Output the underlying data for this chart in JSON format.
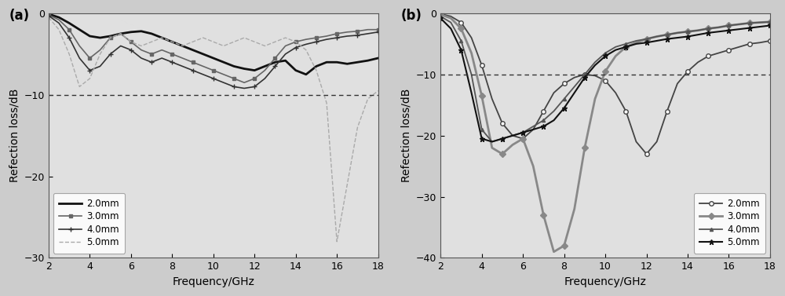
{
  "background_color": "#cccccc",
  "panel_background": "#e0e0e0",
  "title_a": "(a)",
  "title_b": "(b)",
  "xlabel": "Frequency/GHz",
  "ylabel": "Refection loss/dB",
  "xlim": [
    2,
    18
  ],
  "ylim_a": [
    -30,
    0
  ],
  "ylim_b": [
    -40,
    0
  ],
  "xticks": [
    2,
    4,
    6,
    8,
    10,
    12,
    14,
    16,
    18
  ],
  "yticks_a": [
    0,
    -10,
    -20,
    -30
  ],
  "yticks_b": [
    0,
    -10,
    -20,
    -30,
    -40
  ],
  "dashed_line_y": -10,
  "panel_a": {
    "2.0mm": {
      "color": "#111111",
      "linestyle": "-",
      "linewidth": 2.0,
      "marker": "None",
      "freq": [
        2,
        2.5,
        3,
        3.5,
        4,
        4.5,
        5,
        5.5,
        6,
        6.5,
        7,
        7.5,
        8,
        8.5,
        9,
        9.5,
        10,
        10.5,
        11,
        11.5,
        12,
        12.5,
        13,
        13.5,
        14,
        14.5,
        15,
        15.5,
        16,
        16.5,
        17,
        17.5,
        18
      ],
      "vals": [
        -0.1,
        -0.5,
        -1.2,
        -2.0,
        -2.8,
        -3.0,
        -2.8,
        -2.5,
        -2.3,
        -2.2,
        -2.5,
        -3.0,
        -3.5,
        -4.0,
        -4.5,
        -5.0,
        -5.5,
        -6.0,
        -6.5,
        -6.8,
        -7.0,
        -6.5,
        -6.0,
        -5.8,
        -7.0,
        -7.5,
        -6.5,
        -6.0,
        -6.0,
        -6.2,
        -6.0,
        -5.8,
        -5.5
      ]
    },
    "3.0mm": {
      "color": "#666666",
      "linestyle": "-",
      "linewidth": 1.2,
      "marker": "s",
      "markersize": 3,
      "markerfacecolor": "#666666",
      "freq": [
        2,
        2.5,
        3,
        3.5,
        4,
        4.5,
        5,
        5.5,
        6,
        6.5,
        7,
        7.5,
        8,
        8.5,
        9,
        9.5,
        10,
        10.5,
        11,
        11.5,
        12,
        12.5,
        13,
        13.5,
        14,
        14.5,
        15,
        15.5,
        16,
        16.5,
        17,
        17.5,
        18
      ],
      "vals": [
        -0.2,
        -0.8,
        -2.0,
        -4.0,
        -5.5,
        -4.5,
        -3.0,
        -2.5,
        -3.5,
        -4.5,
        -5.0,
        -4.5,
        -5.0,
        -5.5,
        -6.0,
        -6.5,
        -7.0,
        -7.5,
        -8.0,
        -8.5,
        -8.0,
        -7.0,
        -5.5,
        -4.0,
        -3.5,
        -3.2,
        -3.0,
        -2.8,
        -2.5,
        -2.3,
        -2.2,
        -2.0,
        -2.0
      ]
    },
    "4.0mm": {
      "color": "#333333",
      "linestyle": "-",
      "linewidth": 1.2,
      "marker": "+",
      "markersize": 5,
      "markerfacecolor": "#333333",
      "freq": [
        2,
        2.5,
        3,
        3.5,
        4,
        4.5,
        5,
        5.5,
        6,
        6.5,
        7,
        7.5,
        8,
        8.5,
        9,
        9.5,
        10,
        10.5,
        11,
        11.5,
        12,
        12.5,
        13,
        13.5,
        14,
        14.5,
        15,
        15.5,
        16,
        16.5,
        17,
        17.5,
        18
      ],
      "vals": [
        -0.3,
        -1.2,
        -3.0,
        -5.5,
        -7.0,
        -6.5,
        -5.0,
        -4.0,
        -4.5,
        -5.5,
        -6.0,
        -5.5,
        -6.0,
        -6.5,
        -7.0,
        -7.5,
        -8.0,
        -8.5,
        -9.0,
        -9.2,
        -9.0,
        -8.0,
        -6.5,
        -5.0,
        -4.2,
        -3.8,
        -3.5,
        -3.2,
        -3.0,
        -2.8,
        -2.7,
        -2.5,
        -2.3
      ]
    },
    "5.0mm": {
      "color": "#aaaaaa",
      "linestyle": "--",
      "linewidth": 1.0,
      "marker": "None",
      "freq": [
        2,
        2.5,
        3,
        3.5,
        4,
        4.5,
        5,
        5.5,
        6,
        6.5,
        7,
        7.5,
        8,
        8.5,
        9,
        9.5,
        10,
        10.5,
        11,
        11.5,
        12,
        12.5,
        13,
        13.5,
        14,
        14.5,
        15,
        15.5,
        16,
        16.5,
        17,
        17.5,
        18
      ],
      "vals": [
        -0.5,
        -2.0,
        -5.0,
        -9.0,
        -8.0,
        -5.0,
        -3.0,
        -2.5,
        -3.5,
        -4.0,
        -3.5,
        -3.0,
        -3.5,
        -4.0,
        -3.5,
        -3.0,
        -3.5,
        -4.0,
        -3.5,
        -3.0,
        -3.5,
        -4.0,
        -3.5,
        -3.0,
        -3.5,
        -4.5,
        -7.0,
        -11.0,
        -28.0,
        -21.0,
        -14.0,
        -10.5,
        -9.5
      ]
    },
    "legend_order": [
      "2.0mm",
      "3.0mm",
      "4.0mm",
      "5.0mm"
    ]
  },
  "panel_b": {
    "2.0mm": {
      "color": "#444444",
      "linestyle": "-",
      "linewidth": 1.3,
      "marker": "o",
      "markersize": 4,
      "markerfacecolor": "white",
      "markeredgecolor": "#444444",
      "freq": [
        2,
        2.5,
        3,
        3.5,
        4,
        4.5,
        5,
        5.5,
        6,
        6.5,
        7,
        7.5,
        8,
        8.5,
        9,
        9.5,
        10,
        10.5,
        11,
        11.5,
        12,
        12.5,
        13,
        13.5,
        14,
        14.5,
        15,
        15.5,
        16,
        16.5,
        17,
        17.5,
        18
      ],
      "vals": [
        -0.1,
        -0.5,
        -1.5,
        -4.0,
        -8.5,
        -14.0,
        -18.0,
        -20.0,
        -20.5,
        -19.0,
        -16.0,
        -13.0,
        -11.5,
        -10.5,
        -10.0,
        -10.2,
        -11.0,
        -13.0,
        -16.0,
        -21.0,
        -23.0,
        -21.0,
        -16.0,
        -11.5,
        -9.5,
        -8.0,
        -7.0,
        -6.5,
        -6.0,
        -5.5,
        -5.0,
        -4.8,
        -4.5
      ]
    },
    "3.0mm": {
      "color": "#888888",
      "linestyle": "-",
      "linewidth": 2.0,
      "marker": "D",
      "markersize": 4,
      "markerfacecolor": "#888888",
      "freq": [
        2,
        2.5,
        3,
        3.5,
        4,
        4.5,
        5,
        5.5,
        6,
        6.5,
        7,
        7.5,
        8,
        8.5,
        9,
        9.5,
        10,
        10.5,
        11,
        11.5,
        12,
        12.5,
        13,
        13.5,
        14,
        14.5,
        15,
        15.5,
        16,
        16.5,
        17,
        17.5,
        18
      ],
      "vals": [
        -0.2,
        -0.8,
        -2.5,
        -6.5,
        -13.5,
        -22.0,
        -23.0,
        -21.5,
        -20.5,
        -25.0,
        -33.0,
        -39.0,
        -38.0,
        -32.0,
        -22.0,
        -14.0,
        -9.5,
        -7.0,
        -5.5,
        -4.8,
        -4.2,
        -3.8,
        -3.5,
        -3.2,
        -3.0,
        -2.8,
        -2.5,
        -2.3,
        -2.0,
        -1.8,
        -1.6,
        -1.5,
        -1.4
      ]
    },
    "4.0mm": {
      "color": "#555555",
      "linestyle": "-",
      "linewidth": 1.3,
      "marker": "^",
      "markersize": 3,
      "markerfacecolor": "#555555",
      "freq": [
        2,
        2.5,
        3,
        3.5,
        4,
        4.5,
        5,
        5.5,
        6,
        6.5,
        7,
        7.5,
        8,
        8.5,
        9,
        9.5,
        10,
        10.5,
        11,
        11.5,
        12,
        12.5,
        13,
        13.5,
        14,
        14.5,
        15,
        15.5,
        16,
        16.5,
        17,
        17.5,
        18
      ],
      "vals": [
        -0.5,
        -1.5,
        -4.5,
        -10.0,
        -19.0,
        -21.0,
        -20.5,
        -20.0,
        -19.5,
        -18.5,
        -17.5,
        -16.0,
        -14.0,
        -12.0,
        -10.0,
        -8.0,
        -6.5,
        -5.5,
        -5.0,
        -4.5,
        -4.2,
        -3.8,
        -3.5,
        -3.2,
        -3.0,
        -2.8,
        -2.5,
        -2.3,
        -2.0,
        -1.8,
        -1.6,
        -1.5,
        -1.4
      ]
    },
    "5.0mm": {
      "color": "#111111",
      "linestyle": "-",
      "linewidth": 1.5,
      "marker": "*",
      "markersize": 5,
      "markerfacecolor": "#111111",
      "freq": [
        2,
        2.5,
        3,
        3.5,
        4,
        4.5,
        5,
        5.5,
        6,
        6.5,
        7,
        7.5,
        8,
        8.5,
        9,
        9.5,
        10,
        10.5,
        11,
        11.5,
        12,
        12.5,
        13,
        13.5,
        14,
        14.5,
        15,
        15.5,
        16,
        16.5,
        17,
        17.5,
        18
      ],
      "vals": [
        -0.8,
        -2.5,
        -6.0,
        -13.0,
        -20.5,
        -21.0,
        -20.5,
        -20.0,
        -19.5,
        -19.0,
        -18.5,
        -17.5,
        -15.5,
        -13.0,
        -10.5,
        -8.5,
        -7.0,
        -6.0,
        -5.5,
        -5.0,
        -4.8,
        -4.5,
        -4.2,
        -4.0,
        -3.8,
        -3.5,
        -3.2,
        -3.0,
        -2.8,
        -2.6,
        -2.4,
        -2.2,
        -2.0
      ]
    },
    "legend_order": [
      "2.0mm",
      "3.0mm",
      "4.0mm",
      "5.0mm"
    ]
  }
}
